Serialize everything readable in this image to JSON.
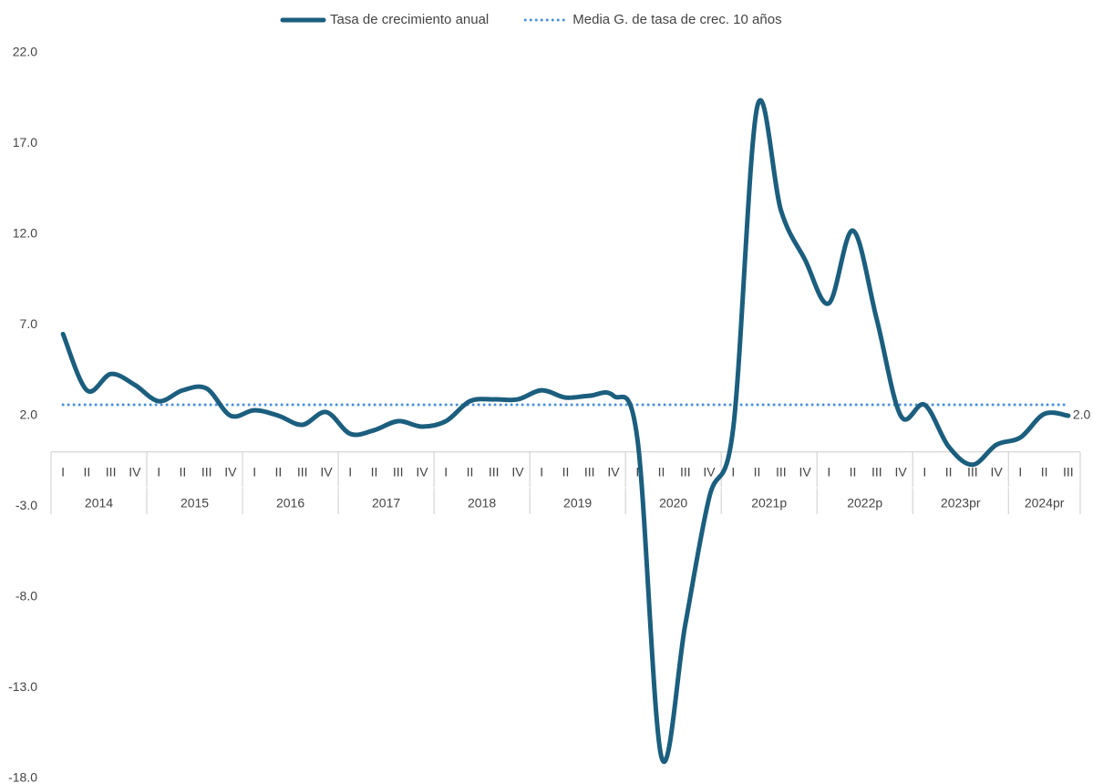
{
  "chart_data": {
    "type": "line",
    "categories": [
      "I",
      "II",
      "III",
      "IV",
      "I",
      "II",
      "III",
      "IV",
      "I",
      "II",
      "III",
      "IV",
      "I",
      "II",
      "III",
      "IV",
      "I",
      "II",
      "III",
      "IV",
      "I",
      "II",
      "III",
      "IV",
      "I",
      "II",
      "III",
      "IV",
      "I",
      "II",
      "III",
      "IV",
      "I",
      "II",
      "III",
      "IV",
      "I",
      "II",
      "III",
      "IV",
      "I",
      "II",
      "III"
    ],
    "groups": [
      "2014",
      "2015",
      "2016",
      "2017",
      "2018",
      "2019",
      "2020",
      "2021p",
      "2022p",
      "2023pr",
      "2024pr"
    ],
    "series": [
      {
        "name": "Tasa de crecimiento anual",
        "color": "#1b5e7e",
        "style": "solid",
        "values": [
          6.5,
          3.4,
          4.3,
          3.7,
          2.8,
          3.4,
          3.5,
          2.0,
          2.3,
          2.0,
          1.5,
          2.2,
          1.0,
          1.2,
          1.7,
          1.4,
          1.7,
          2.8,
          2.9,
          2.9,
          3.4,
          3.0,
          3.1,
          3.1,
          0.7,
          -16.8,
          -9.5,
          -2.5,
          1.3,
          19.0,
          13.3,
          10.6,
          8.2,
          12.2,
          7.3,
          2.0,
          2.6,
          0.3,
          -0.7,
          0.4,
          0.8,
          2.1,
          2.0
        ],
        "value_labels": [
          null,
          null,
          null,
          null,
          null,
          null,
          null,
          null,
          null,
          null,
          null,
          null,
          null,
          null,
          null,
          null,
          null,
          null,
          null,
          null,
          null,
          null,
          null,
          null,
          null,
          null,
          null,
          null,
          null,
          null,
          null,
          null,
          null,
          null,
          null,
          null,
          null,
          null,
          null,
          null,
          null,
          null,
          "2.0"
        ]
      },
      {
        "name": "Media G. de tasa de crec. 10 años",
        "color": "#4a90d9",
        "style": "dotted",
        "values": [
          2.6,
          2.6,
          2.6,
          2.6,
          2.6,
          2.6,
          2.6,
          2.6,
          2.6,
          2.6,
          2.6,
          2.6,
          2.6,
          2.6,
          2.6,
          2.6,
          2.6,
          2.6,
          2.6,
          2.6,
          2.6,
          2.6,
          2.6,
          2.6,
          2.6,
          2.6,
          2.6,
          2.6,
          2.6,
          2.6,
          2.6,
          2.6,
          2.6,
          2.6,
          2.6,
          2.6,
          2.6,
          2.6,
          2.6,
          2.6,
          2.6,
          2.6,
          2.6
        ]
      }
    ],
    "ylim": [
      -18,
      22
    ],
    "yticks": [
      {
        "value": 22,
        "label": "22.0"
      },
      {
        "value": 17,
        "label": "17.0"
      },
      {
        "value": 12,
        "label": "12.0"
      },
      {
        "value": 7,
        "label": "7.0"
      },
      {
        "value": 2,
        "label": "2.0"
      },
      {
        "value": -3,
        "label": "-3.0"
      },
      {
        "value": -8,
        "label": "-8.0"
      },
      {
        "value": -13,
        "label": "-13.0"
      },
      {
        "value": -18,
        "label": "-18.0"
      }
    ],
    "legend": "top",
    "grid": false
  }
}
